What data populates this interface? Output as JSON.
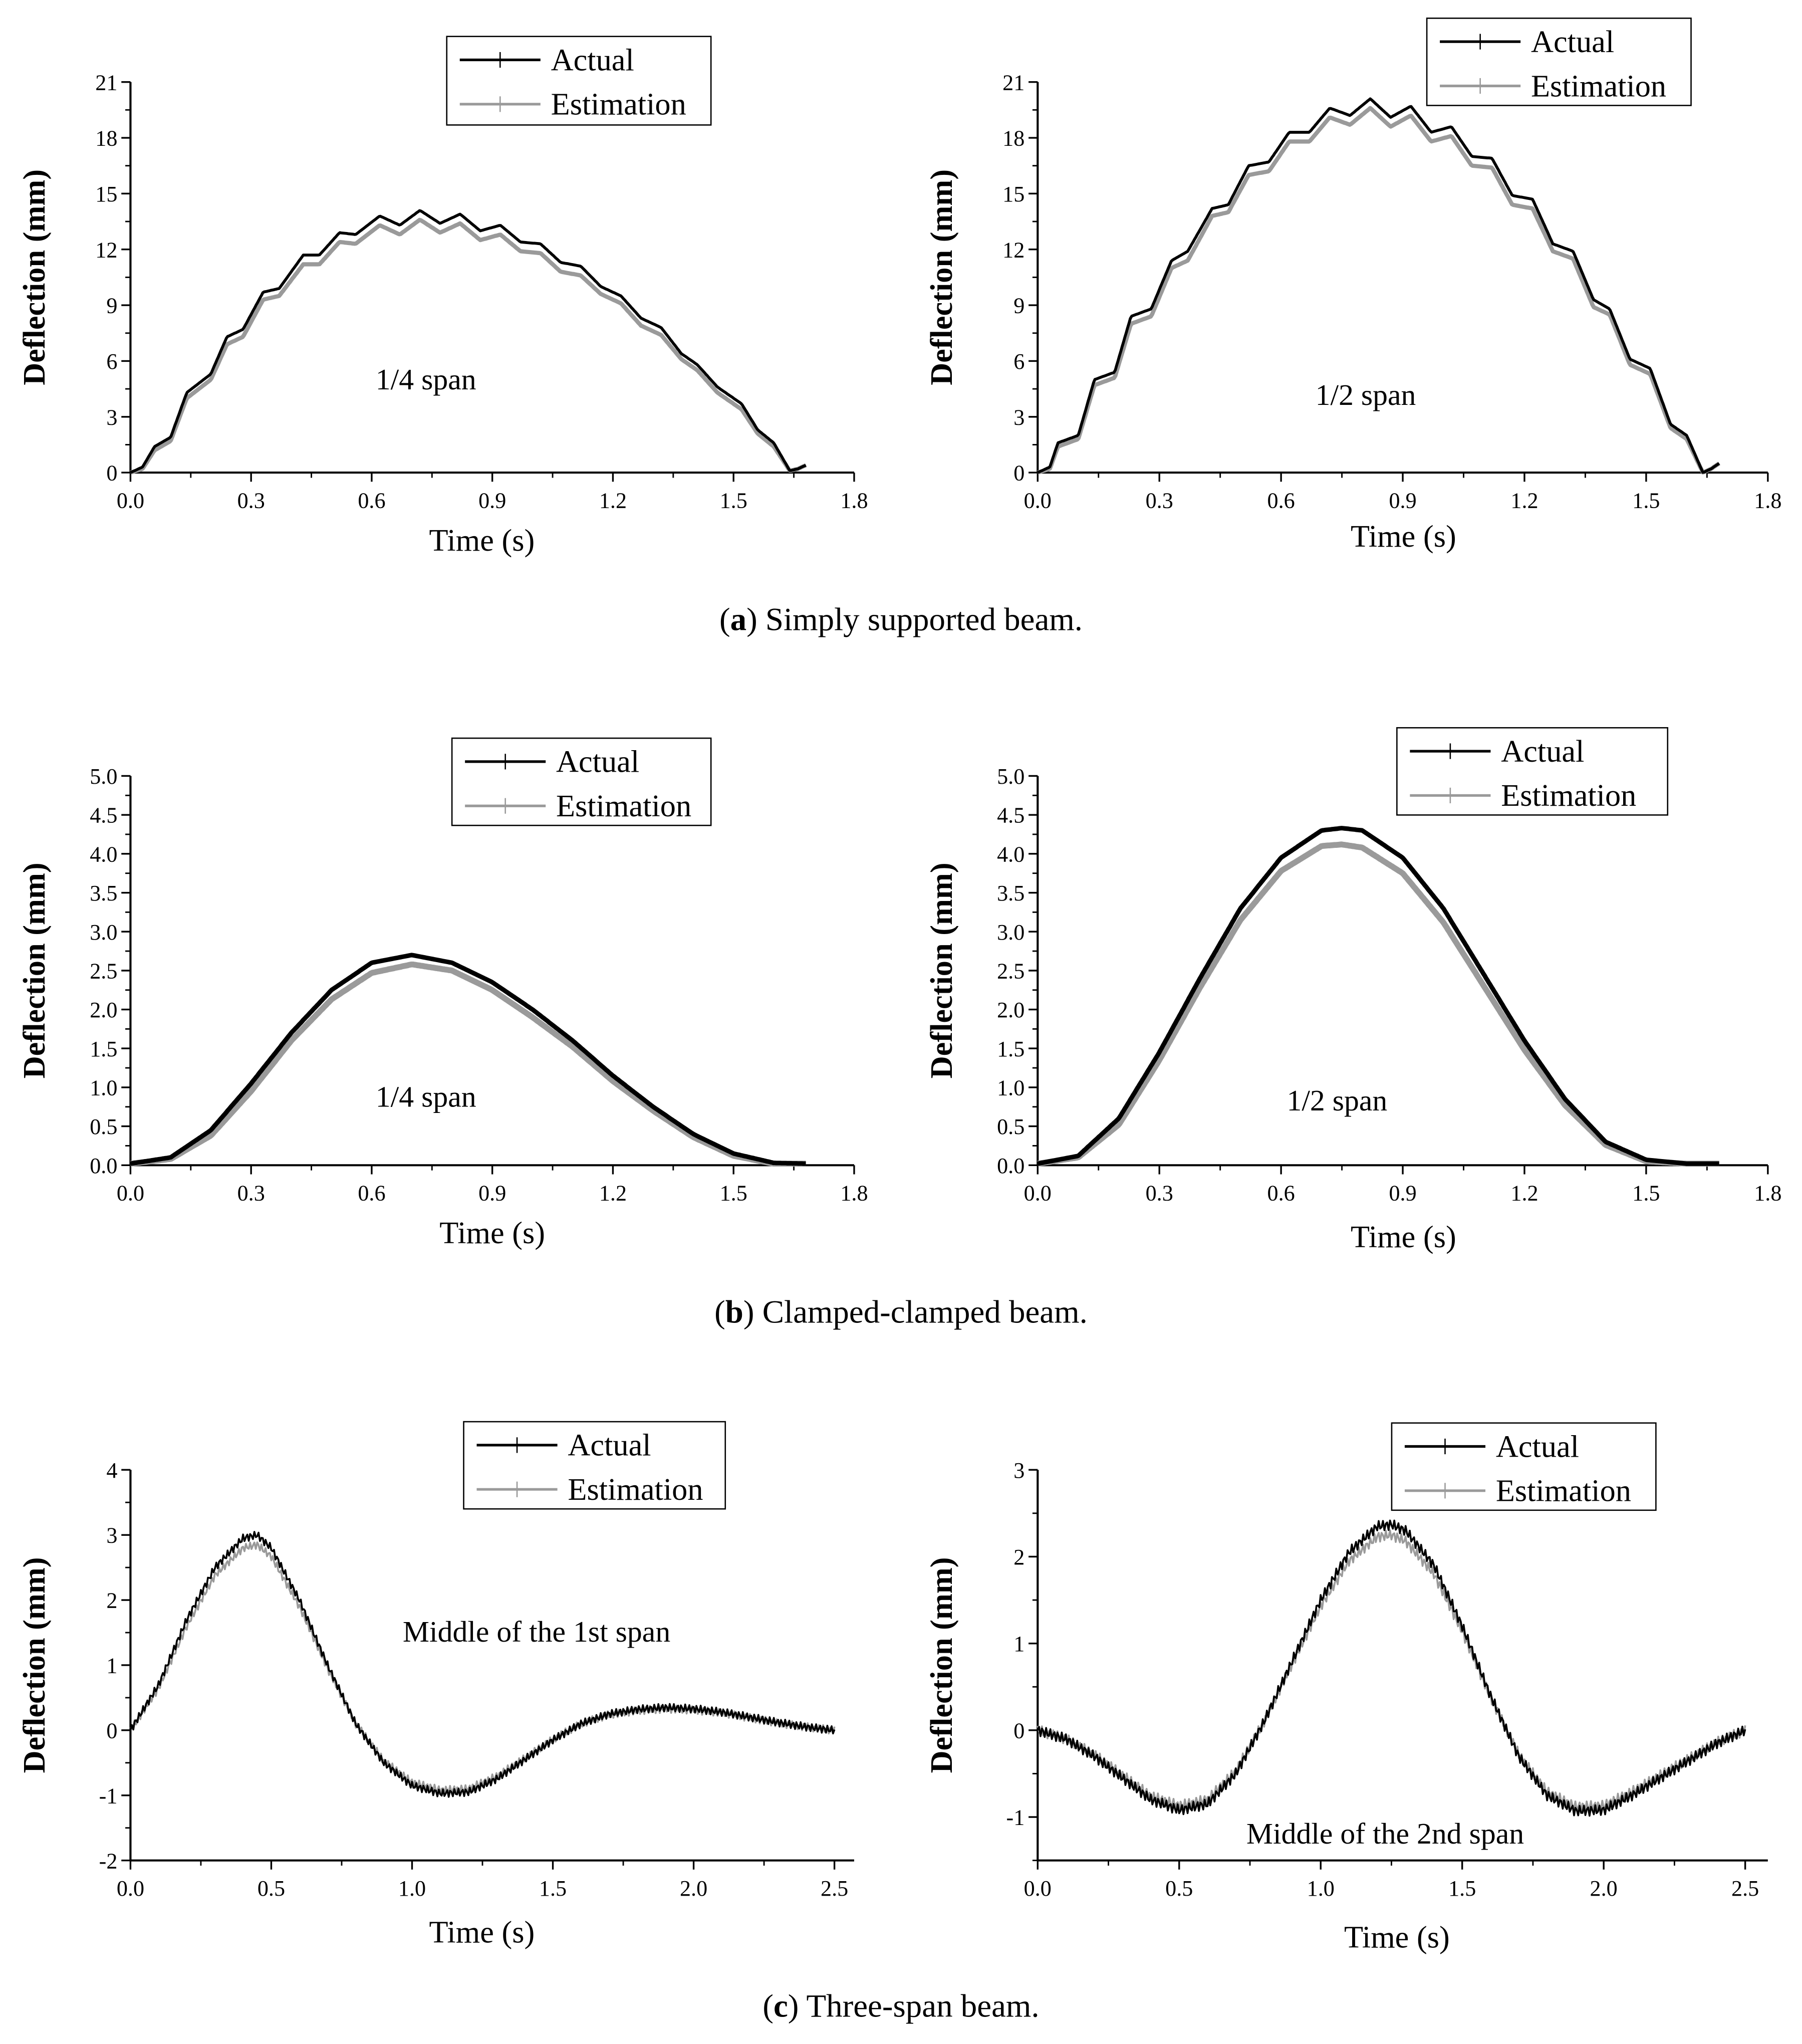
{
  "captions": [
    {
      "letter": "a",
      "open": "(",
      "close": ") Simply supported beam."
    },
    {
      "letter": "b",
      "open": "(",
      "close": ") Clamped-clamped beam."
    },
    {
      "letter": "c",
      "open": "(",
      "close": ") Three-span beam."
    }
  ],
  "chart_data": [
    {
      "type": "line",
      "id": "a-quarter",
      "annotation": "1/4 span",
      "xlabel": "Time (s)",
      "ylabel": "Deflection (mm)",
      "xlim": [
        0,
        1.8
      ],
      "ylim": [
        0,
        21
      ],
      "xticks": [
        0,
        0.3,
        0.6,
        0.9,
        1.2,
        1.5,
        1.8
      ],
      "xtick_labels": [
        "0.0",
        "0.3",
        "0.6",
        "0.9",
        "1.2",
        "1.5",
        "1.8"
      ],
      "yticks": [
        0,
        3,
        6,
        9,
        12,
        15,
        18,
        21
      ],
      "ytick_labels": [
        "0",
        "3",
        "6",
        "9",
        "12",
        "15",
        "18",
        "21"
      ],
      "legend": [
        "Actual",
        "Estimation"
      ],
      "legend_position": "top-center",
      "series_colors": [
        "#000000",
        "#9a9a9a"
      ],
      "t": [
        0,
        0.03,
        0.06,
        0.1,
        0.14,
        0.17,
        0.2,
        0.24,
        0.28,
        0.33,
        0.37,
        0.43,
        0.47,
        0.52,
        0.56,
        0.62,
        0.67,
        0.72,
        0.77,
        0.82,
        0.87,
        0.92,
        0.97,
        1.02,
        1.07,
        1.12,
        1.17,
        1.22,
        1.27,
        1.32,
        1.37,
        1.41,
        1.46,
        1.52,
        1.56,
        1.6,
        1.64,
        1.66,
        1.68
      ],
      "series": [
        {
          "name": "Actual",
          "values": [
            0,
            0.3,
            1.4,
            1.9,
            4.3,
            4.8,
            5.3,
            7.3,
            7.7,
            9.7,
            9.9,
            11.7,
            11.7,
            12.9,
            12.8,
            13.8,
            13.3,
            14.1,
            13.4,
            13.9,
            13.0,
            13.3,
            12.4,
            12.3,
            11.3,
            11.1,
            10.0,
            9.5,
            8.3,
            7.8,
            6.4,
            5.8,
            4.6,
            3.7,
            2.3,
            1.6,
            0.1,
            0.2,
            0.4
          ]
        },
        {
          "name": "Estimation",
          "values": [
            0,
            0.2,
            1.2,
            1.7,
            4.0,
            4.5,
            5.0,
            6.9,
            7.3,
            9.3,
            9.5,
            11.2,
            11.2,
            12.4,
            12.3,
            13.3,
            12.8,
            13.6,
            12.9,
            13.4,
            12.5,
            12.8,
            11.9,
            11.8,
            10.8,
            10.6,
            9.6,
            9.1,
            7.9,
            7.4,
            6.1,
            5.5,
            4.3,
            3.4,
            2.1,
            1.4,
            0.1,
            0.2,
            0.4
          ]
        }
      ]
    },
    {
      "type": "line",
      "id": "a-half",
      "annotation": "1/2 span",
      "xlabel": "Time (s)",
      "ylabel": "Deflection (mm)",
      "xlim": [
        0,
        1.8
      ],
      "ylim": [
        0,
        21
      ],
      "xticks": [
        0,
        0.3,
        0.6,
        0.9,
        1.2,
        1.5,
        1.8
      ],
      "xtick_labels": [
        "0.0",
        "0.3",
        "0.6",
        "0.9",
        "1.2",
        "1.5",
        "1.8"
      ],
      "yticks": [
        0,
        3,
        6,
        9,
        12,
        15,
        18,
        21
      ],
      "ytick_labels": [
        "0",
        "3",
        "6",
        "9",
        "12",
        "15",
        "18",
        "21"
      ],
      "legend": [
        "Actual",
        "Estimation"
      ],
      "legend_position": "top-right",
      "series_colors": [
        "#000000",
        "#9a9a9a"
      ],
      "t": [
        0,
        0.03,
        0.05,
        0.1,
        0.14,
        0.19,
        0.23,
        0.28,
        0.33,
        0.37,
        0.43,
        0.47,
        0.52,
        0.57,
        0.62,
        0.67,
        0.72,
        0.77,
        0.82,
        0.87,
        0.92,
        0.97,
        1.02,
        1.07,
        1.12,
        1.17,
        1.22,
        1.27,
        1.32,
        1.37,
        1.41,
        1.46,
        1.51,
        1.56,
        1.6,
        1.64,
        1.66,
        1.68
      ],
      "series": [
        {
          "name": "Actual",
          "values": [
            0,
            0.3,
            1.6,
            2.0,
            5.0,
            5.4,
            8.4,
            8.8,
            11.4,
            11.9,
            14.2,
            14.4,
            16.5,
            16.7,
            18.3,
            18.3,
            19.6,
            19.2,
            20.1,
            19.1,
            19.7,
            18.3,
            18.6,
            17.0,
            16.9,
            14.9,
            14.7,
            12.3,
            11.9,
            9.3,
            8.8,
            6.1,
            5.6,
            2.6,
            2.0,
            0,
            0.2,
            0.5
          ]
        },
        {
          "name": "Estimation",
          "values": [
            0,
            0.2,
            1.4,
            1.8,
            4.7,
            5.1,
            8.0,
            8.4,
            11.0,
            11.4,
            13.8,
            14.0,
            16.0,
            16.2,
            17.8,
            17.8,
            19.1,
            18.7,
            19.6,
            18.6,
            19.2,
            17.8,
            18.1,
            16.5,
            16.4,
            14.4,
            14.2,
            11.9,
            11.5,
            8.9,
            8.5,
            5.8,
            5.3,
            2.4,
            1.8,
            0,
            0.2,
            0.5
          ]
        }
      ]
    },
    {
      "type": "line",
      "id": "b-quarter",
      "annotation": "1/4 span",
      "xlabel": "Time (s)",
      "ylabel": "Deflection (mm)",
      "xlim": [
        0,
        1.8
      ],
      "ylim": [
        0,
        5
      ],
      "xticks": [
        0,
        0.3,
        0.6,
        0.9,
        1.2,
        1.5,
        1.8
      ],
      "xtick_labels": [
        "0.0",
        "0.3",
        "0.6",
        "0.9",
        "1.2",
        "1.5",
        "1.8"
      ],
      "yticks": [
        0,
        0.5,
        1,
        1.5,
        2,
        2.5,
        3,
        3.5,
        4,
        4.5,
        5
      ],
      "ytick_labels": [
        "0.0",
        "0.5",
        "1.0",
        "1.5",
        "2.0",
        "2.5",
        "3.0",
        "3.5",
        "4.0",
        "4.5",
        "5.0"
      ],
      "legend": [
        "Actual",
        "Estimation"
      ],
      "legend_position": "top-center",
      "series_colors": [
        "#000000",
        "#9a9a9a"
      ],
      "t": [
        0,
        0.1,
        0.2,
        0.3,
        0.4,
        0.5,
        0.6,
        0.7,
        0.8,
        0.9,
        1.0,
        1.1,
        1.2,
        1.3,
        1.4,
        1.5,
        1.6,
        1.68
      ],
      "series": [
        {
          "name": "Actual",
          "values": [
            0.02,
            0.1,
            0.45,
            1.05,
            1.7,
            2.25,
            2.6,
            2.7,
            2.6,
            2.35,
            2.0,
            1.6,
            1.15,
            0.75,
            0.4,
            0.15,
            0.03,
            0.02
          ]
        },
        {
          "name": "Estimation",
          "values": [
            0.02,
            0.08,
            0.38,
            0.95,
            1.6,
            2.13,
            2.47,
            2.58,
            2.5,
            2.25,
            1.9,
            1.52,
            1.08,
            0.7,
            0.36,
            0.12,
            0.02,
            0.02
          ]
        }
      ]
    },
    {
      "type": "line",
      "id": "b-half",
      "annotation": "1/2 span",
      "xlabel": "Time (s)",
      "ylabel": "Deflection (mm)",
      "xlim": [
        0,
        1.8
      ],
      "ylim": [
        0,
        5
      ],
      "xticks": [
        0,
        0.3,
        0.6,
        0.9,
        1.2,
        1.5,
        1.8
      ],
      "xtick_labels": [
        "0.0",
        "0.3",
        "0.6",
        "0.9",
        "1.2",
        "1.5",
        "1.8"
      ],
      "yticks": [
        0,
        0.5,
        1,
        1.5,
        2,
        2.5,
        3,
        3.5,
        4,
        4.5,
        5
      ],
      "ytick_labels": [
        "0.0",
        "0.5",
        "1.0",
        "1.5",
        "2.0",
        "2.5",
        "3.0",
        "3.5",
        "4.0",
        "4.5",
        "5.0"
      ],
      "legend": [
        "Actual",
        "Estimation"
      ],
      "legend_position": "top-center",
      "series_colors": [
        "#000000",
        "#9a9a9a"
      ],
      "t": [
        0,
        0.1,
        0.2,
        0.3,
        0.4,
        0.5,
        0.6,
        0.7,
        0.75,
        0.8,
        0.9,
        1.0,
        1.1,
        1.2,
        1.3,
        1.4,
        1.5,
        1.6,
        1.68
      ],
      "series": [
        {
          "name": "Actual",
          "values": [
            0.02,
            0.12,
            0.6,
            1.45,
            2.4,
            3.3,
            3.95,
            4.3,
            4.33,
            4.3,
            3.95,
            3.3,
            2.45,
            1.6,
            0.85,
            0.3,
            0.07,
            0.02,
            0.02
          ]
        },
        {
          "name": "Estimation",
          "values": [
            0.02,
            0.1,
            0.52,
            1.35,
            2.28,
            3.15,
            3.78,
            4.1,
            4.12,
            4.08,
            3.75,
            3.12,
            2.3,
            1.48,
            0.77,
            0.26,
            0.05,
            0.02,
            0.02
          ]
        }
      ]
    },
    {
      "type": "line",
      "id": "c-first",
      "annotation": "Middle of the 1st span",
      "xlabel": "Time (s)",
      "ylabel": "Deflection (mm)",
      "xlim": [
        0,
        2.57
      ],
      "ylim": [
        -2,
        4
      ],
      "xticks": [
        0,
        0.5,
        1,
        1.5,
        2,
        2.5
      ],
      "xtick_labels": [
        "0.0",
        "0.5",
        "1.0",
        "1.5",
        "2.0",
        "2.5"
      ],
      "yticks": [
        -2,
        -1,
        0,
        1,
        2,
        3,
        4
      ],
      "ytick_labels": [
        "-2",
        "-1",
        "0",
        "1",
        "2",
        "3",
        "4"
      ],
      "legend": [
        "Actual",
        "Estimation"
      ],
      "legend_position": "top-center",
      "series_colors": [
        "#000000",
        "#9a9a9a"
      ],
      "t": [
        0,
        0.1,
        0.2,
        0.3,
        0.4,
        0.45,
        0.5,
        0.6,
        0.7,
        0.8,
        0.9,
        1.0,
        1.1,
        1.2,
        1.3,
        1.4,
        1.5,
        1.6,
        1.7,
        1.8,
        1.9,
        2.0,
        2.1,
        2.2,
        2.3,
        2.4,
        2.5
      ],
      "series": [
        {
          "name": "Actual",
          "values": [
            0,
            0.7,
            1.7,
            2.5,
            2.95,
            3.0,
            2.8,
            2.0,
            1.0,
            0.1,
            -0.5,
            -0.85,
            -0.97,
            -0.95,
            -0.75,
            -0.45,
            -0.15,
            0.1,
            0.25,
            0.32,
            0.35,
            0.33,
            0.28,
            0.2,
            0.12,
            0.05,
            0
          ]
        },
        {
          "name": "Estimation",
          "values": [
            0,
            0.65,
            1.6,
            2.38,
            2.8,
            2.85,
            2.67,
            1.9,
            0.95,
            0.1,
            -0.47,
            -0.8,
            -0.92,
            -0.9,
            -0.71,
            -0.43,
            -0.14,
            0.1,
            0.24,
            0.3,
            0.33,
            0.31,
            0.27,
            0.19,
            0.11,
            0.05,
            0
          ]
        }
      ]
    },
    {
      "type": "line",
      "id": "c-second",
      "annotation": "Middle of the 2nd span",
      "xlabel": "Time (s)",
      "ylabel": "Deflection (mm)",
      "xlim": [
        0,
        2.58
      ],
      "ylim": [
        -1.5,
        3
      ],
      "xticks": [
        0,
        0.5,
        1,
        1.5,
        2,
        2.5
      ],
      "xtick_labels": [
        "0.0",
        "0.5",
        "1.0",
        "1.5",
        "2.0",
        "2.5"
      ],
      "yticks": [
        -1,
        0,
        1,
        2,
        3
      ],
      "ytick_labels": [
        "-1",
        "0",
        "1",
        "2",
        "3"
      ],
      "legend": [
        "Actual",
        "Estimation"
      ],
      "legend_position": "top-right",
      "series_colors": [
        "#000000",
        "#9a9a9a"
      ],
      "t": [
        0,
        0.1,
        0.2,
        0.3,
        0.4,
        0.5,
        0.6,
        0.7,
        0.8,
        0.9,
        1.0,
        1.1,
        1.2,
        1.25,
        1.3,
        1.4,
        1.5,
        1.6,
        1.7,
        1.8,
        1.9,
        2.0,
        2.1,
        2.2,
        2.3,
        2.4,
        2.5
      ],
      "series": [
        {
          "name": "Actual",
          "values": [
            0,
            -0.1,
            -0.3,
            -0.55,
            -0.8,
            -0.92,
            -0.85,
            -0.5,
            0.1,
            0.8,
            1.5,
            2.05,
            2.35,
            2.37,
            2.3,
            1.9,
            1.2,
            0.4,
            -0.3,
            -0.75,
            -0.93,
            -0.92,
            -0.75,
            -0.55,
            -0.35,
            -0.15,
            0
          ]
        },
        {
          "name": "Estimation",
          "values": [
            0,
            -0.1,
            -0.28,
            -0.52,
            -0.76,
            -0.87,
            -0.8,
            -0.47,
            0.1,
            0.77,
            1.43,
            1.95,
            2.23,
            2.25,
            2.18,
            1.8,
            1.14,
            0.38,
            -0.28,
            -0.71,
            -0.88,
            -0.87,
            -0.71,
            -0.52,
            -0.33,
            -0.14,
            0
          ]
        }
      ]
    }
  ]
}
